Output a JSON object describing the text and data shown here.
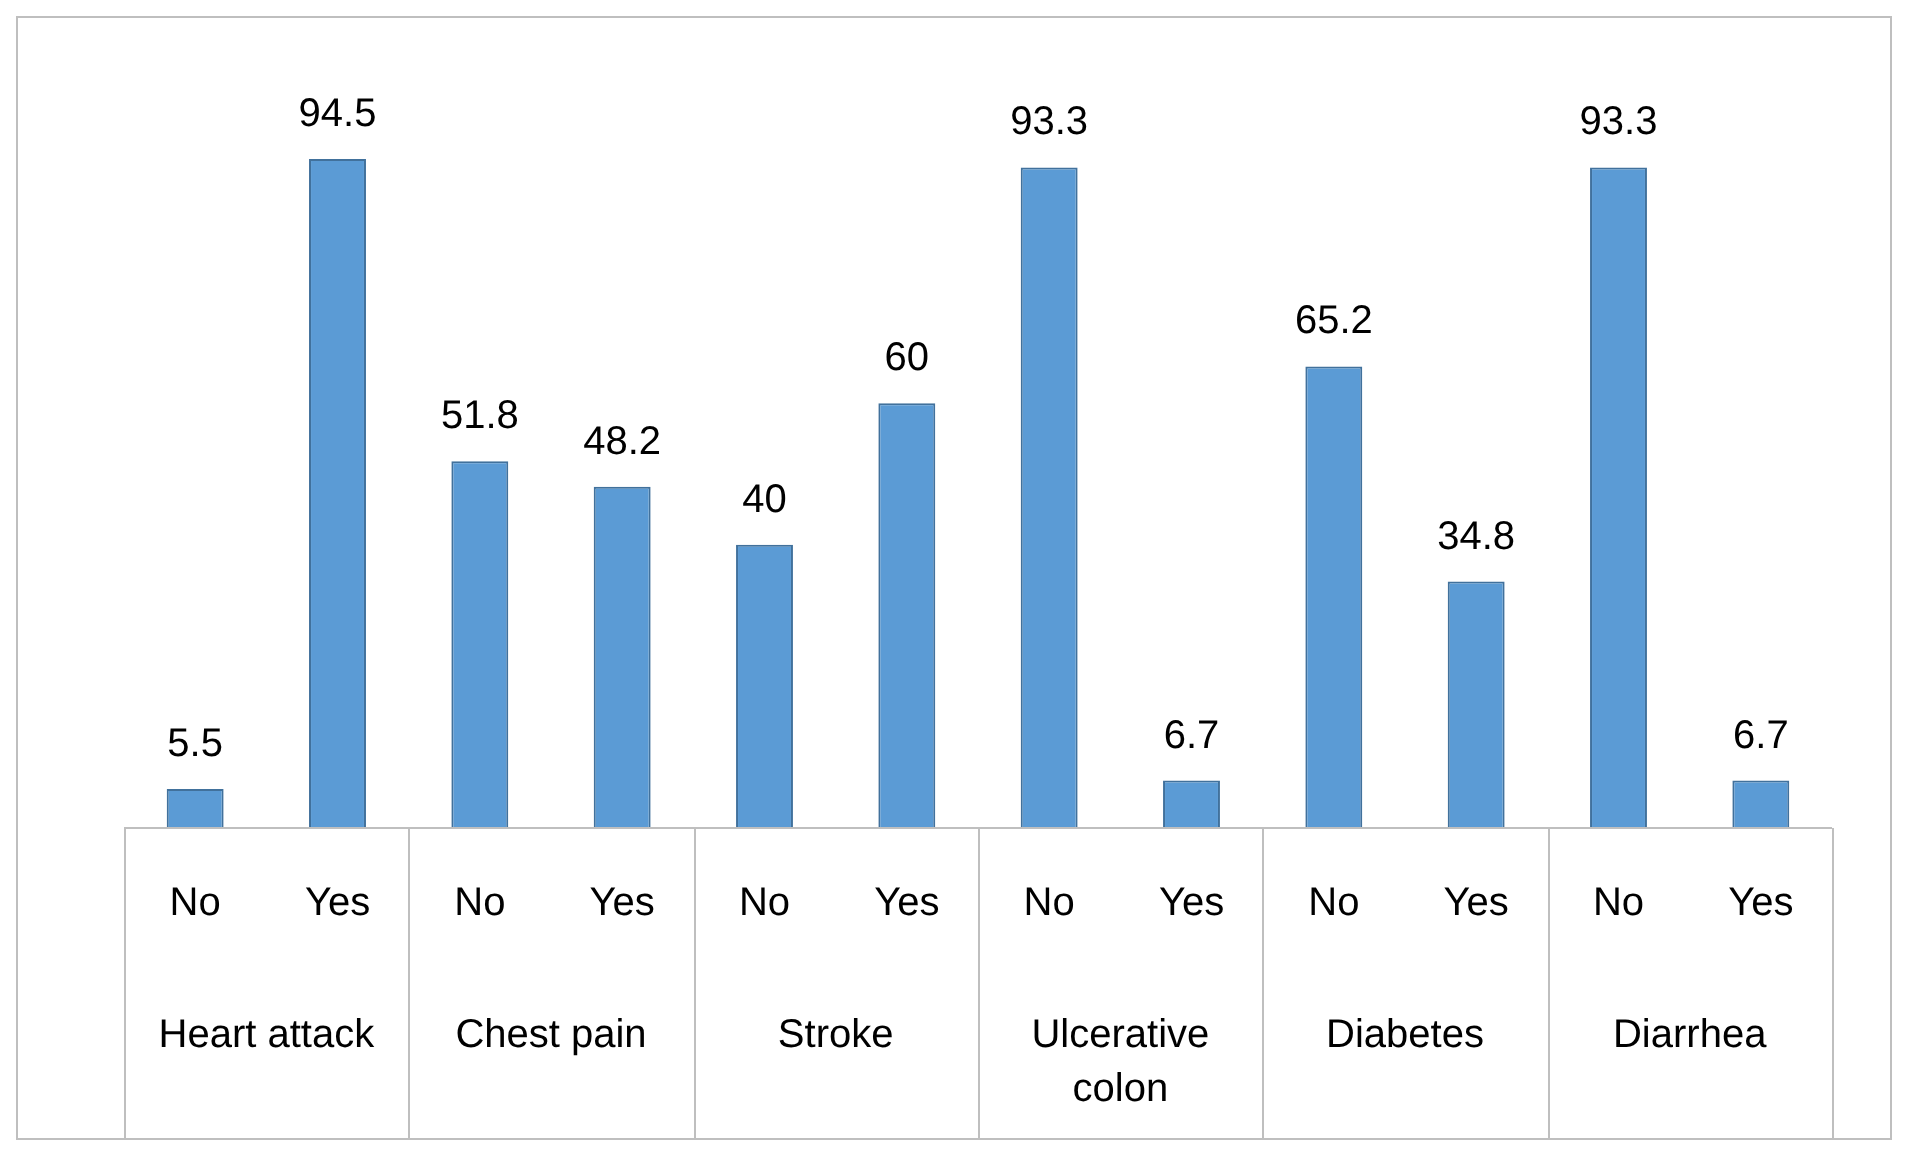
{
  "chart_data": {
    "type": "bar",
    "categories": [
      "No",
      "Yes",
      "No",
      "Yes",
      "No",
      "Yes",
      "No",
      "Yes",
      "No",
      "Yes",
      "No",
      "Yes"
    ],
    "values": [
      5.5,
      94.5,
      51.8,
      48.2,
      40,
      60,
      93.3,
      6.7,
      65.2,
      34.8,
      93.3,
      6.7
    ],
    "color": "#5b9bd5",
    "data_labels": true,
    "annotations": [
      "Heart attack",
      "Chest pain",
      "Stroke",
      "Ulcerative colon",
      "Diabetes",
      "Diarrhea"
    ],
    "grid": false,
    "legend": false
  }
}
